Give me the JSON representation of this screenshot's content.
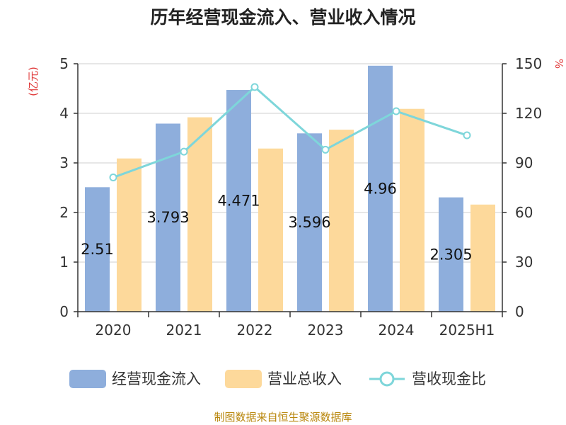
{
  "chart_data": {
    "type": "bar",
    "title": "历年经营现金流入、营业收入情况",
    "categories": [
      "2020",
      "2021",
      "2022",
      "2023",
      "2024",
      "2025H1"
    ],
    "series": [
      {
        "name": "经营现金流入",
        "kind": "bar",
        "axis": "left",
        "color": "#8eaedc",
        "values": [
          2.51,
          3.793,
          4.471,
          3.596,
          4.96,
          2.305
        ]
      },
      {
        "name": "营业总收入",
        "kind": "bar",
        "axis": "left",
        "color": "#fdd99b",
        "values": [
          3.09,
          3.92,
          3.29,
          3.67,
          4.09,
          2.16
        ]
      },
      {
        "name": "营收现金比",
        "kind": "line",
        "axis": "right",
        "color": "#7ed6da",
        "values": [
          81.2,
          96.8,
          135.9,
          98.0,
          121.3,
          106.7
        ]
      }
    ],
    "data_labels": [
      "2.51",
      "3.793",
      "4.471",
      "3.596",
      "4.96",
      "2.305"
    ],
    "y_left": {
      "unit": "(亿元)",
      "range": [
        0,
        5
      ],
      "ticks": [
        "0",
        "1",
        "2",
        "3",
        "4",
        "5"
      ]
    },
    "y_right": {
      "unit": "%",
      "range": [
        0,
        150
      ],
      "ticks": [
        "0",
        "30",
        "60",
        "90",
        "120",
        "150"
      ]
    },
    "grid": true,
    "legend_position": "bottom",
    "source": "制图数据来自恒生聚源数据库"
  }
}
